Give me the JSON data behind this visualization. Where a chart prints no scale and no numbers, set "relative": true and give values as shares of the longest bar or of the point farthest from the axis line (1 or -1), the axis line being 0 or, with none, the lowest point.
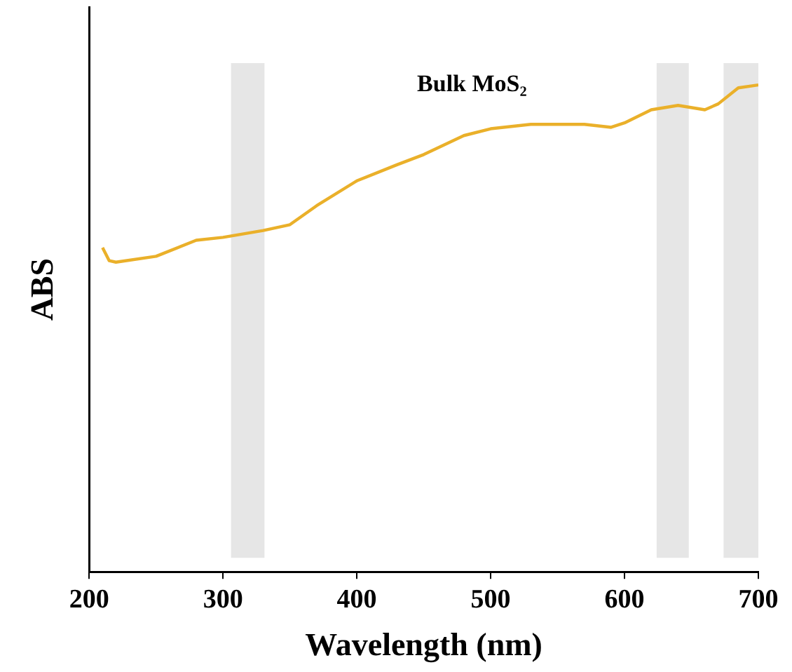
{
  "chart_data": {
    "type": "line",
    "xlabel": "Wavelength (nm)",
    "ylabel": "ABS",
    "relative": true,
    "legend": false,
    "grid": false,
    "marker": "none",
    "line_style": "solid",
    "xlim": [
      200,
      700
    ],
    "xticks": [
      200,
      300,
      400,
      500,
      600,
      700
    ],
    "series": [
      {
        "name": "Bulk MoS₂",
        "color": "#eab02a",
        "x": [
          210,
          215,
          220,
          250,
          280,
          300,
          330,
          350,
          370,
          400,
          430,
          450,
          480,
          500,
          530,
          570,
          590,
          600,
          620,
          640,
          660,
          670,
          685,
          700
        ],
        "values": [
          0.666,
          0.639,
          0.636,
          0.648,
          0.681,
          0.687,
          0.701,
          0.713,
          0.752,
          0.803,
          0.836,
          0.857,
          0.896,
          0.91,
          0.919,
          0.919,
          0.913,
          0.922,
          0.949,
          0.958,
          0.949,
          0.961,
          0.994,
          1.0
        ]
      }
    ],
    "bands": [
      {
        "axis": "x",
        "from": 306,
        "to": 331,
        "color": "#e6e6e6"
      },
      {
        "axis": "x",
        "from": 624,
        "to": 648,
        "color": "#e6e6e6"
      },
      {
        "axis": "x",
        "from": 674,
        "to": 700,
        "color": "#e6e6e6"
      }
    ]
  }
}
